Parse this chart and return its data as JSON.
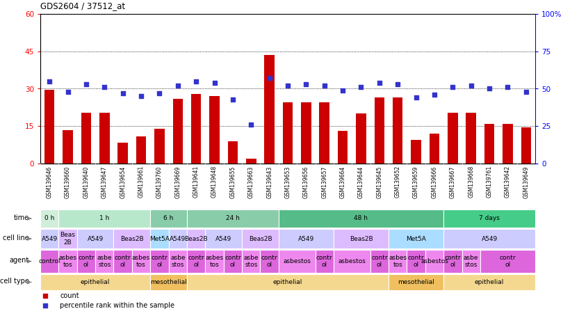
{
  "title": "GDS2604 / 37512_at",
  "samples": [
    "GSM139646",
    "GSM139660",
    "GSM139640",
    "GSM139647",
    "GSM139654",
    "GSM139661",
    "GSM139760",
    "GSM139669",
    "GSM139641",
    "GSM139648",
    "GSM139655",
    "GSM139663",
    "GSM139643",
    "GSM139653",
    "GSM139656",
    "GSM139657",
    "GSM139664",
    "GSM139644",
    "GSM139645",
    "GSM139652",
    "GSM139659",
    "GSM139666",
    "GSM139667",
    "GSM139668",
    "GSM139761",
    "GSM139642",
    "GSM139649"
  ],
  "counts": [
    29.5,
    13.5,
    20.5,
    20.5,
    8.5,
    11.0,
    14.0,
    26.0,
    28.0,
    27.0,
    9.0,
    2.0,
    43.5,
    24.5,
    24.5,
    24.5,
    13.0,
    20.0,
    26.5,
    26.5,
    9.5,
    12.0,
    20.5,
    20.5,
    16.0,
    16.0,
    14.5
  ],
  "percentiles": [
    55,
    48,
    53,
    51,
    47,
    45,
    47,
    52,
    55,
    54,
    43,
    26,
    57,
    52,
    53,
    52,
    49,
    51,
    54,
    53,
    44,
    46,
    51,
    52,
    50,
    51,
    48
  ],
  "ylim_left": [
    0,
    60
  ],
  "ylim_right": [
    0,
    100
  ],
  "yticks_left": [
    0,
    15,
    30,
    45,
    60
  ],
  "yticks_right": [
    0,
    25,
    50,
    75,
    100
  ],
  "ytick_labels_right": [
    "0",
    "25",
    "50",
    "75",
    "100%"
  ],
  "bar_color": "#CC0000",
  "dot_color": "#3333CC",
  "background_color": "#ffffff",
  "plot_bg": "#ffffff",
  "xticklabel_bg": "#e0e0e0",
  "time_entries": [
    {
      "label": "0 h",
      "span": [
        0,
        1
      ],
      "color": "#d0eeda"
    },
    {
      "label": "1 h",
      "span": [
        1,
        6
      ],
      "color": "#b8e8cc"
    },
    {
      "label": "6 h",
      "span": [
        6,
        8
      ],
      "color": "#88ccaa"
    },
    {
      "label": "24 h",
      "span": [
        8,
        13
      ],
      "color": "#88ccaa"
    },
    {
      "label": "48 h",
      "span": [
        13,
        22
      ],
      "color": "#55bb88"
    },
    {
      "label": "7 days",
      "span": [
        22,
        27
      ],
      "color": "#44cc88"
    }
  ],
  "cell_line_entries": [
    {
      "label": "A549",
      "span": [
        0,
        1
      ],
      "color": "#ccccff"
    },
    {
      "label": "Beas\n2B",
      "span": [
        1,
        2
      ],
      "color": "#ddbbff"
    },
    {
      "label": "A549",
      "span": [
        2,
        4
      ],
      "color": "#ccccff"
    },
    {
      "label": "Beas2B",
      "span": [
        4,
        6
      ],
      "color": "#ddbbff"
    },
    {
      "label": "Met5A",
      "span": [
        6,
        7
      ],
      "color": "#aaddff"
    },
    {
      "label": "A549",
      "span": [
        7,
        8
      ],
      "color": "#ccccff"
    },
    {
      "label": "Beas2B",
      "span": [
        8,
        9
      ],
      "color": "#ddbbff"
    },
    {
      "label": "A549",
      "span": [
        9,
        11
      ],
      "color": "#ccccff"
    },
    {
      "label": "Beas2B",
      "span": [
        11,
        13
      ],
      "color": "#ddbbff"
    },
    {
      "label": "A549",
      "span": [
        13,
        16
      ],
      "color": "#ccccff"
    },
    {
      "label": "Beas2B",
      "span": [
        16,
        19
      ],
      "color": "#ddbbff"
    },
    {
      "label": "Met5A",
      "span": [
        19,
        22
      ],
      "color": "#aaddff"
    },
    {
      "label": "A549",
      "span": [
        22,
        27
      ],
      "color": "#ccccff"
    }
  ],
  "agent_entries": [
    {
      "label": "control",
      "span": [
        0,
        1
      ],
      "color": "#dd66dd"
    },
    {
      "label": "asbes\ntos",
      "span": [
        1,
        2
      ],
      "color": "#ee88ee"
    },
    {
      "label": "contr\nol",
      "span": [
        2,
        3
      ],
      "color": "#dd66dd"
    },
    {
      "label": "asbe\nstos",
      "span": [
        3,
        4
      ],
      "color": "#ee88ee"
    },
    {
      "label": "contr\nol",
      "span": [
        4,
        5
      ],
      "color": "#dd66dd"
    },
    {
      "label": "asbes\ntos",
      "span": [
        5,
        6
      ],
      "color": "#ee88ee"
    },
    {
      "label": "contr\nol",
      "span": [
        6,
        7
      ],
      "color": "#dd66dd"
    },
    {
      "label": "asbe\nstos",
      "span": [
        7,
        8
      ],
      "color": "#ee88ee"
    },
    {
      "label": "contr\nol",
      "span": [
        8,
        9
      ],
      "color": "#dd66dd"
    },
    {
      "label": "asbes\ntos",
      "span": [
        9,
        10
      ],
      "color": "#ee88ee"
    },
    {
      "label": "contr\nol",
      "span": [
        10,
        11
      ],
      "color": "#dd66dd"
    },
    {
      "label": "asbe\nstos",
      "span": [
        11,
        12
      ],
      "color": "#ee88ee"
    },
    {
      "label": "contr\nol",
      "span": [
        12,
        13
      ],
      "color": "#dd66dd"
    },
    {
      "label": "asbestos",
      "span": [
        13,
        15
      ],
      "color": "#ee88ee"
    },
    {
      "label": "contr\nol",
      "span": [
        15,
        16
      ],
      "color": "#dd66dd"
    },
    {
      "label": "asbestos",
      "span": [
        16,
        18
      ],
      "color": "#ee88ee"
    },
    {
      "label": "contr\nol",
      "span": [
        18,
        19
      ],
      "color": "#dd66dd"
    },
    {
      "label": "asbes\ntos",
      "span": [
        19,
        20
      ],
      "color": "#ee88ee"
    },
    {
      "label": "contr\nol",
      "span": [
        20,
        21
      ],
      "color": "#dd66dd"
    },
    {
      "label": "asbestos",
      "span": [
        21,
        22
      ],
      "color": "#ee88ee"
    },
    {
      "label": "contr\nol",
      "span": [
        22,
        23
      ],
      "color": "#dd66dd"
    },
    {
      "label": "asbe\nstos",
      "span": [
        23,
        24
      ],
      "color": "#ee88ee"
    },
    {
      "label": "contr\nol",
      "span": [
        24,
        27
      ],
      "color": "#dd66dd"
    }
  ],
  "cell_type_entries": [
    {
      "label": "epithelial",
      "span": [
        0,
        6
      ],
      "color": "#f5d890"
    },
    {
      "label": "mesothelial",
      "span": [
        6,
        8
      ],
      "color": "#f0c060"
    },
    {
      "label": "epithelial",
      "span": [
        8,
        19
      ],
      "color": "#f5d890"
    },
    {
      "label": "mesothelial",
      "span": [
        19,
        22
      ],
      "color": "#f0c060"
    },
    {
      "label": "epithelial",
      "span": [
        22,
        27
      ],
      "color": "#f5d890"
    }
  ]
}
